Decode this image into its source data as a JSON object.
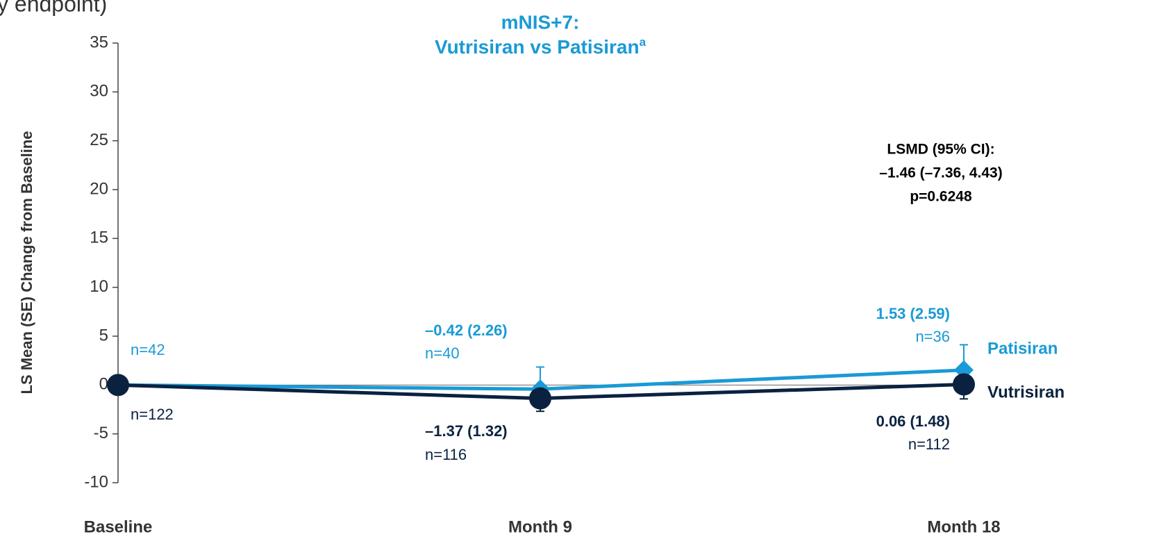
{
  "chart_data": {
    "type": "line",
    "corner_text": "y endpoint)",
    "title_lines": [
      "mNIS+7:",
      "Vutrisiran vs Patisiran"
    ],
    "title_superscript": "a",
    "ylabel": "LS Mean (SE) Change from Baseline",
    "categories": [
      "Baseline",
      "Month 9",
      "Month 18"
    ],
    "ylim": [
      -10,
      35
    ],
    "yticks": [
      -10,
      -5,
      0,
      5,
      10,
      15,
      20,
      25,
      30,
      35
    ],
    "zero_line": true,
    "series": [
      {
        "name": "Patisiran",
        "color": "#1a9ad6",
        "marker": "diamond",
        "error_direction": "up",
        "values": [
          0,
          -0.42,
          1.53
        ],
        "errors": [
          null,
          2.26,
          2.59
        ],
        "value_labels": [
          null,
          "–0.42 (2.26)",
          "1.53 (2.59)"
        ],
        "n_labels": [
          "n=42",
          "n=40",
          "n=36"
        ]
      },
      {
        "name": "Vutrisiran",
        "color": "#0a2240",
        "marker": "circle",
        "error_direction": "down",
        "values": [
          0,
          -1.37,
          0.06
        ],
        "errors": [
          null,
          1.32,
          1.48
        ],
        "value_labels": [
          null,
          "–1.37 (1.32)",
          "0.06 (1.48)"
        ],
        "n_labels": [
          "n=122",
          "n=116",
          "n=112"
        ]
      }
    ],
    "annotation_lines": [
      "LSMD (95% CI):",
      "–1.46 (–7.36, 4.43)",
      "p=0.6248"
    ]
  }
}
